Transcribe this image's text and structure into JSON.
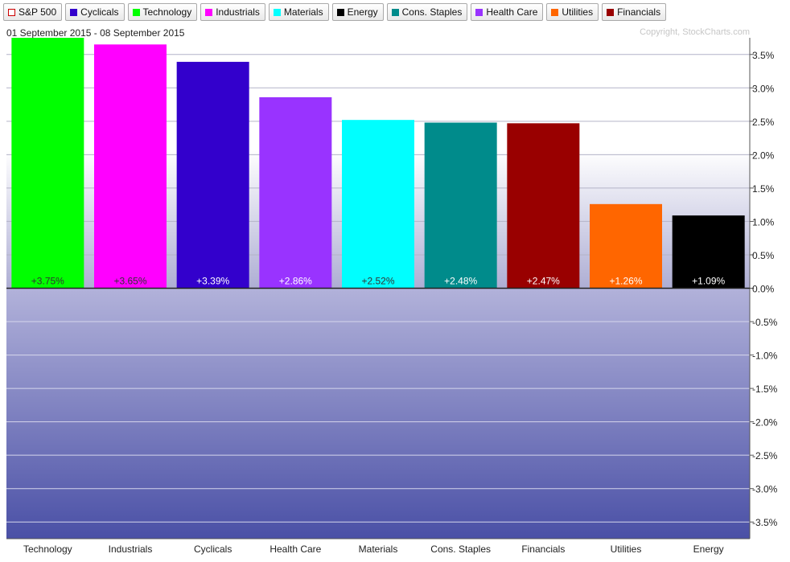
{
  "legend": [
    {
      "label": "S&P 500",
      "color": "#ffffff",
      "border": "#cc0000",
      "icon": "hollow-square-icon"
    },
    {
      "label": "Cyclicals",
      "color": "#3300cc",
      "icon": "square-icon"
    },
    {
      "label": "Technology",
      "color": "#00ff00",
      "icon": "square-icon"
    },
    {
      "label": "Industrials",
      "color": "#ff00ff",
      "icon": "square-icon"
    },
    {
      "label": "Materials",
      "color": "#00ffff",
      "icon": "square-icon"
    },
    {
      "label": "Energy",
      "color": "#000000",
      "icon": "square-icon"
    },
    {
      "label": "Cons. Staples",
      "color": "#008b8b",
      "icon": "square-icon"
    },
    {
      "label": "Health Care",
      "color": "#9933ff",
      "icon": "square-icon"
    },
    {
      "label": "Utilities",
      "color": "#ff6600",
      "icon": "square-icon"
    },
    {
      "label": "Financials",
      "color": "#990000",
      "icon": "square-icon"
    }
  ],
  "date_range": "01 September 2015 - 08 September 2015",
  "copyright": "Copyright, StockCharts.com",
  "chart_data": {
    "type": "bar",
    "categories": [
      "Technology",
      "Industrials",
      "Cyclicals",
      "Health Care",
      "Materials",
      "Cons. Staples",
      "Financials",
      "Utilities",
      "Energy"
    ],
    "values": [
      3.75,
      3.65,
      3.39,
      2.86,
      2.52,
      2.48,
      2.47,
      1.26,
      1.09
    ],
    "data_labels": [
      "+3.75%",
      "+3.65%",
      "+3.39%",
      "+2.86%",
      "+2.52%",
      "+2.48%",
      "+2.47%",
      "+1.26%",
      "+1.09%"
    ],
    "colors": [
      "#00ff00",
      "#ff00ff",
      "#3300cc",
      "#9933ff",
      "#00ffff",
      "#008b8b",
      "#990000",
      "#ff6600",
      "#000000"
    ],
    "label_colors": [
      "#333333",
      "#333333",
      "#ffffff",
      "#ffffff",
      "#333333",
      "#ffffff",
      "#ffffff",
      "#ffffff",
      "#ffffff"
    ],
    "ylim": [
      -3.75,
      3.75
    ],
    "yticks": [
      3.5,
      3.0,
      2.5,
      2.0,
      1.5,
      1.0,
      0.5,
      0.0,
      -0.5,
      -1.0,
      -1.5,
      -2.0,
      -2.5,
      -3.0,
      -3.5
    ],
    "ytick_labels": [
      "3.5%",
      "3.0%",
      "2.5%",
      "2.0%",
      "1.5%",
      "1.0%",
      "0.5%",
      "0.0%",
      "-0.5%",
      "-1.0%",
      "-1.5%",
      "-2.0%",
      "-2.5%",
      "-3.0%",
      "-3.5%"
    ],
    "y_axis_side": "right",
    "grid": true,
    "title": "",
    "xlabel": "",
    "ylabel": ""
  }
}
